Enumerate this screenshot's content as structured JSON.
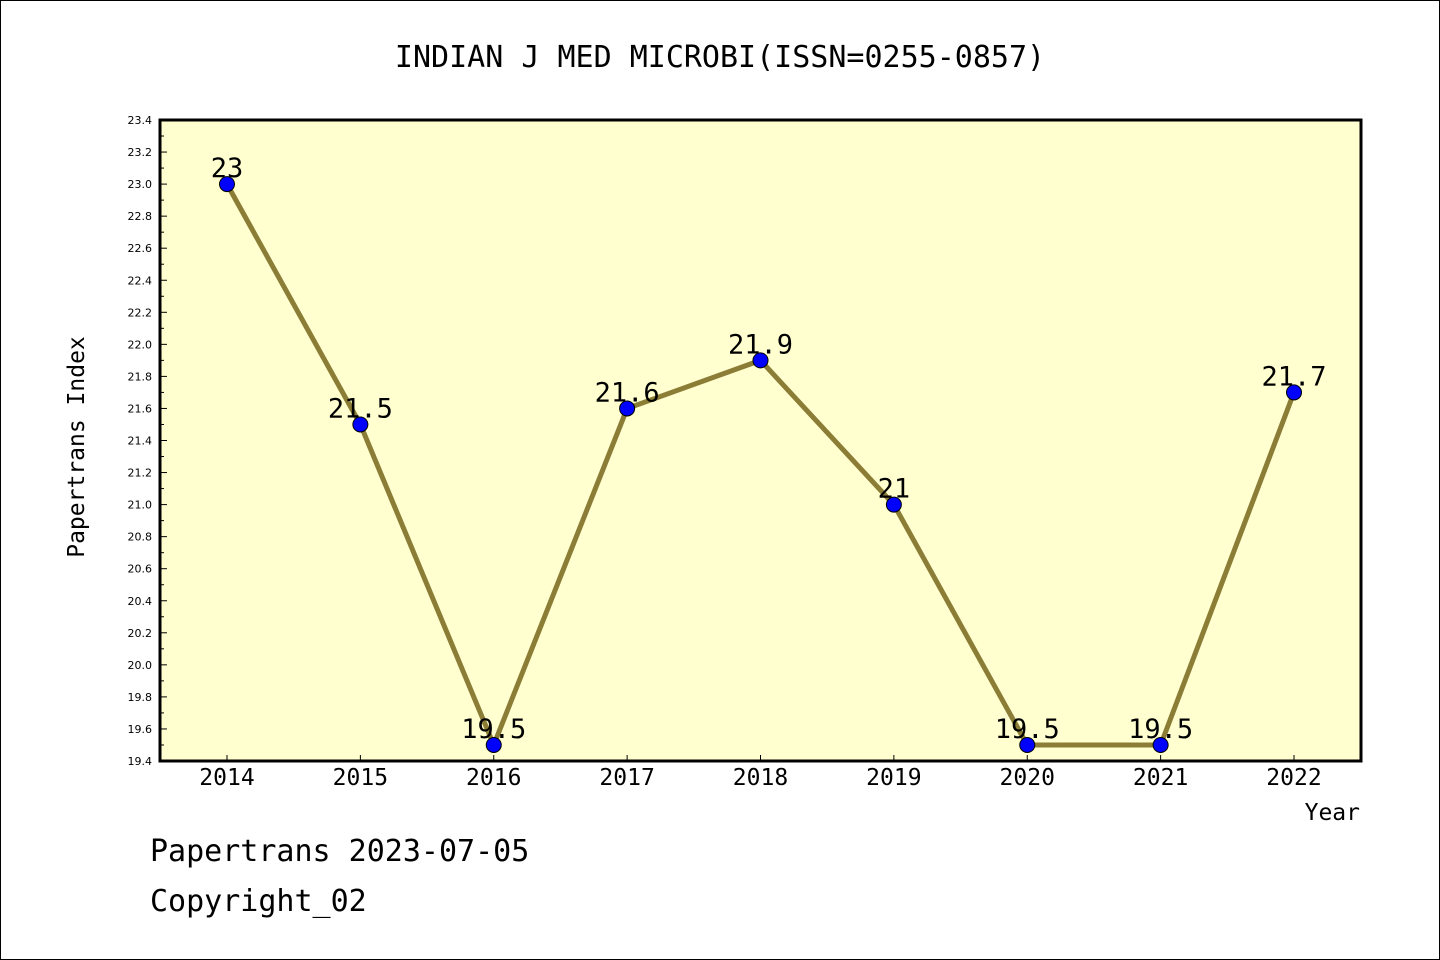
{
  "chart_data": {
    "type": "line",
    "title": "INDIAN J MED MICROBI(ISSN=0255-0857)",
    "xlabel": "Year",
    "ylabel": "Papertrans Index",
    "x": [
      "2014",
      "2015",
      "2016",
      "2017",
      "2018",
      "2019",
      "2020",
      "2021",
      "2022"
    ],
    "series": [
      {
        "values": [
          23,
          21.5,
          19.5,
          21.6,
          21.9,
          21,
          19.5,
          19.5,
          21.7
        ],
        "labels": [
          "23",
          "21.5",
          "19.5",
          "21.6",
          "21.9",
          "21",
          "19.5",
          "19.5",
          "21.7"
        ]
      }
    ],
    "ylim": [
      19.4,
      23.4
    ],
    "yticks": [
      "19.4",
      "19.6",
      "19.8",
      "20.0",
      "20.2",
      "20.4",
      "20.6",
      "20.8",
      "21.0",
      "21.2",
      "21.4",
      "21.6",
      "21.8",
      "22.0",
      "22.2",
      "22.4",
      "22.6",
      "22.8",
      "23.0",
      "23.2",
      "23.4"
    ],
    "grid": false,
    "colors": {
      "plot_background": "#ffffd0",
      "line": "#8b7d35",
      "marker": "#0000ff"
    }
  },
  "footer": {
    "date_line": "Papertrans 2023-07-05",
    "copyright": "Copyright_02"
  }
}
